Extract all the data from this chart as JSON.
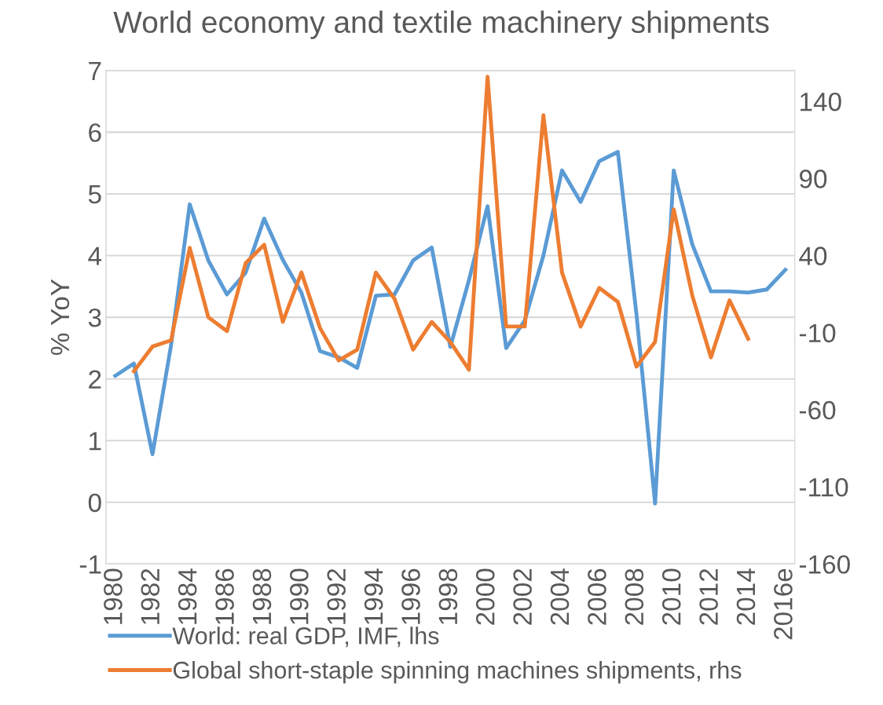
{
  "chart_data": {
    "type": "line",
    "title": "World economy and textile machinery shipments",
    "ylabel": "% YoY",
    "categories": [
      "1980",
      null,
      "1982",
      null,
      "1984",
      null,
      "1986",
      null,
      "1988",
      null,
      "1990",
      null,
      "1992",
      null,
      "1994",
      null,
      "1996",
      null,
      "1998",
      null,
      "2000",
      null,
      "2002",
      null,
      "2004",
      null,
      "2006",
      null,
      "2008",
      null,
      "2010",
      null,
      "2012",
      null,
      "2014",
      null,
      "2016e"
    ],
    "series": [
      {
        "name": "World: real GDP, IMF, lhs",
        "color": "#5b9bd5",
        "values": [
          2.05,
          2.25,
          0.78,
          2.55,
          4.83,
          3.92,
          3.37,
          3.72,
          4.6,
          3.93,
          3.4,
          2.45,
          2.35,
          2.18,
          3.35,
          3.37,
          3.92,
          4.13,
          2.52,
          3.6,
          4.8,
          2.5,
          2.95,
          4.0,
          5.38,
          4.87,
          5.53,
          5.68,
          3.05,
          -0.02,
          5.38,
          4.18,
          3.42,
          3.42,
          3.4,
          3.45,
          3.77
        ]
      },
      {
        "name": "Global short-staple spinning machines shipments, rhs",
        "color": "#ed7d31",
        "axis": "y2",
        "values": [
          null,
          -35,
          -19,
          -15,
          45,
          0,
          -9,
          35,
          47,
          -3,
          29,
          -7,
          -28,
          -21,
          29,
          12,
          -21,
          -3,
          -16,
          -34,
          156,
          -6,
          -6,
          131,
          29,
          -6,
          19,
          10,
          -32,
          -16,
          70,
          14,
          -26,
          11,
          -14,
          null,
          null
        ]
      }
    ],
    "ylim": [
      -1,
      7
    ],
    "yticks": [
      -1,
      0,
      1,
      2,
      3,
      4,
      5,
      6,
      7
    ],
    "y2lim": [
      -160,
      160
    ],
    "y2ticks": [
      -160,
      -110,
      -60,
      -10,
      40,
      90,
      140
    ],
    "grid": "y",
    "legend": "bottom",
    "line_style": "solid",
    "marker": "none"
  }
}
